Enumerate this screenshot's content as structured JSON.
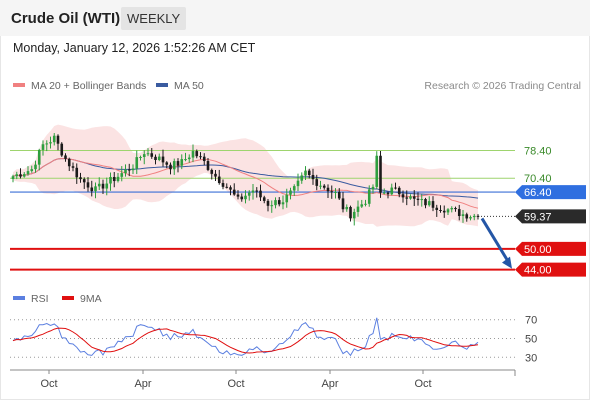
{
  "header": {
    "title": "Crude Oil (WTI)",
    "period_tab": "WEEKLY"
  },
  "datetime": "Monday, January 12, 2026 1:52:26 AM CET",
  "legend": {
    "ma20_bb": "MA 20 + Bollinger Bands",
    "ma50": "MA 50",
    "copyright": "Research © 2026 Trading Central",
    "rsi": "RSI",
    "ma9": "9MA"
  },
  "colors": {
    "ma20": "#f08080",
    "ma50": "#3a5ba0",
    "bollinger_fill": "#fbe3e3",
    "candle_up": "#2e9e3e",
    "candle_down": "#1b1b1b",
    "resistance": "#9ed46e",
    "support": "#e01010",
    "current_line": "#3b6fd6",
    "rsi": "#5b7fe0",
    "rsi_ma": "#e01010"
  },
  "chart_data": [
    {
      "type": "candlestick",
      "title": "Crude Oil (WTI)",
      "period": "weekly",
      "ylim": [
        41,
        93
      ],
      "x_tick_labels": [
        "Oct",
        "Apr",
        "Oct",
        "Apr",
        "Oct"
      ],
      "levels": [
        {
          "label": "78.40",
          "value": 78.4,
          "kind": "resistance"
        },
        {
          "label": "70.40",
          "value": 70.4,
          "kind": "resistance"
        },
        {
          "label": "66.40",
          "value": 66.4,
          "kind": "pivot"
        },
        {
          "label": "59.37",
          "value": 59.37,
          "kind": "last"
        },
        {
          "label": "50.00",
          "value": 50.0,
          "kind": "support"
        },
        {
          "label": "44.00",
          "value": 44.0,
          "kind": "support"
        }
      ],
      "forecast_target": 44.0,
      "series": [
        {
          "name": "MA 20 + Bollinger Bands"
        },
        {
          "name": "MA 50"
        }
      ]
    },
    {
      "type": "line",
      "ylim": [
        25,
        75
      ],
      "y_ticks": [
        "70",
        "50",
        "30"
      ],
      "y_tick_values": [
        70,
        50,
        30
      ],
      "series": [
        {
          "name": "RSI"
        },
        {
          "name": "9MA"
        }
      ]
    }
  ]
}
